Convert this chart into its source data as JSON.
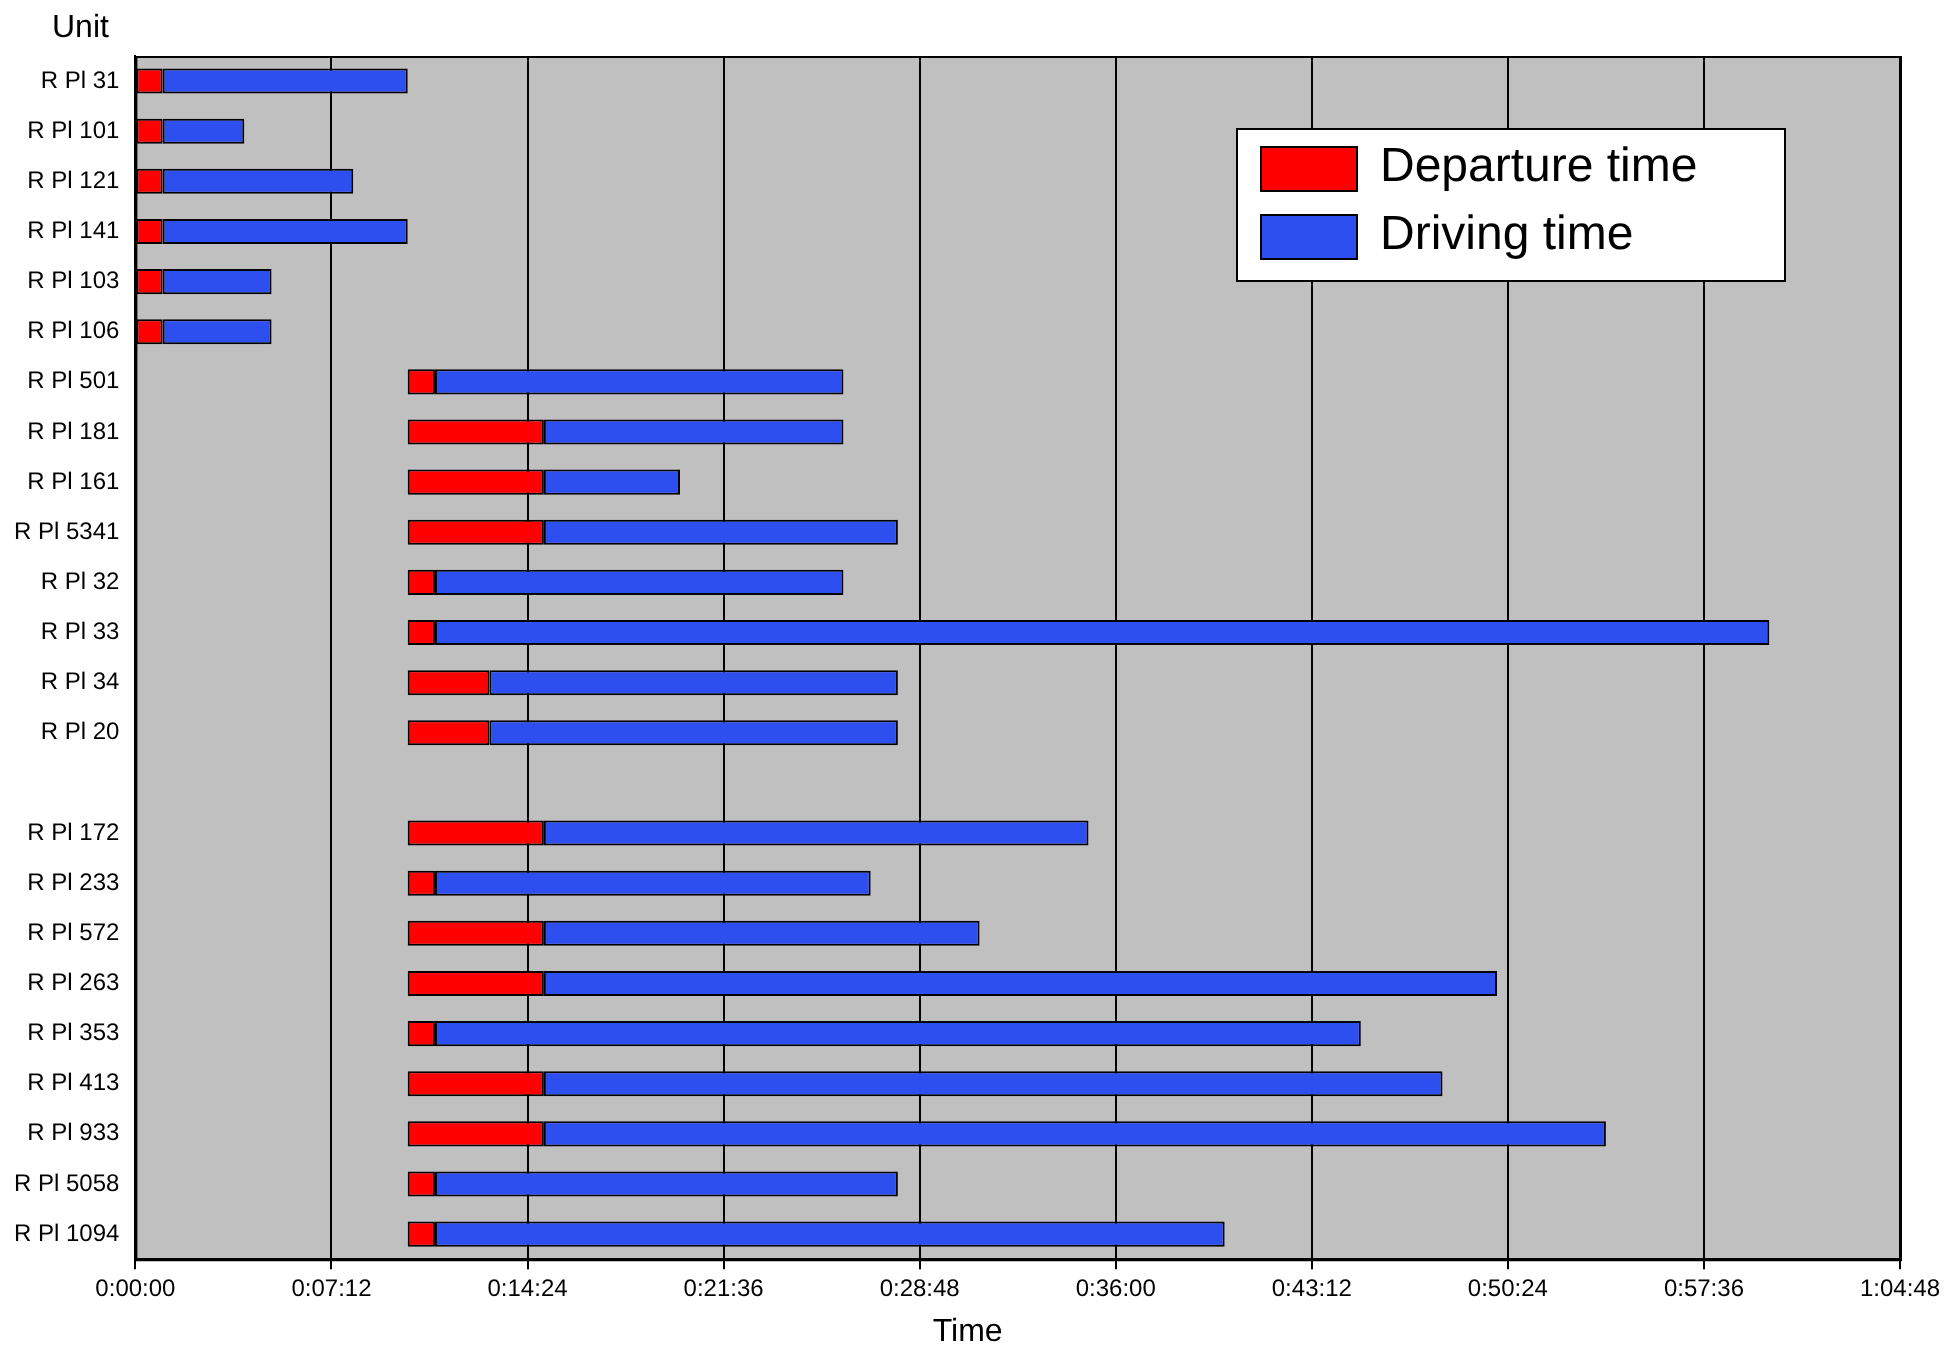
{
  "chart_data": {
    "type": "bar",
    "orientation": "horizontal",
    "xlabel": "Time",
    "ylabel": "Unit",
    "categories": [
      "R Pl 31",
      "R Pl 101",
      "R Pl 121",
      "R Pl 141",
      "R Pl 103",
      "R Pl 106",
      "R Pl 501",
      "R Pl 181",
      "R Pl 161",
      "R Pl 5341",
      "R Pl 32",
      "R Pl 33",
      "R Pl 34",
      "R Pl 20",
      null,
      "R Pl 172",
      "R Pl 233",
      "R Pl 572",
      "R Pl 263",
      "R Pl 353",
      "R Pl 413",
      "R Pl 933",
      "R Pl 5058",
      "R Pl 1094"
    ],
    "series": [
      {
        "name": "Departure time",
        "color": "#ff0000",
        "base": [
          0,
          0,
          0,
          0,
          0,
          0,
          10,
          10,
          10,
          10,
          10,
          10,
          10,
          10,
          null,
          10,
          10,
          10,
          10,
          10,
          10,
          10,
          10,
          10
        ],
        "values": [
          1,
          1,
          1,
          1,
          1,
          1,
          1,
          5,
          5,
          5,
          1,
          1,
          3,
          3,
          null,
          5,
          1,
          5,
          5,
          1,
          5,
          5,
          1,
          1
        ]
      },
      {
        "name": "Driving time",
        "color": "#2e4ff0",
        "base": [
          1,
          1,
          1,
          1,
          1,
          1,
          11,
          15,
          15,
          15,
          11,
          11,
          13,
          13,
          null,
          15,
          11,
          15,
          15,
          11,
          15,
          15,
          11,
          11
        ],
        "values": [
          9,
          3,
          7,
          9,
          4,
          4,
          15,
          11,
          5,
          13,
          15,
          49,
          15,
          15,
          null,
          20,
          16,
          16,
          35,
          34,
          33,
          39,
          17,
          29
        ]
      }
    ],
    "xlim": [
      0,
      64.8
    ],
    "xticks": [
      {
        "value": 0,
        "label": "0:00:00"
      },
      {
        "value": 7.2,
        "label": "0:07:12"
      },
      {
        "value": 14.4,
        "label": "0:14:24"
      },
      {
        "value": 21.6,
        "label": "0:21:36"
      },
      {
        "value": 28.8,
        "label": "0:28:48"
      },
      {
        "value": 36,
        "label": "0:36:00"
      },
      {
        "value": 43.2,
        "label": "0:43:12"
      },
      {
        "value": 50.4,
        "label": "0:50:24"
      },
      {
        "value": 57.6,
        "label": "0:57:36"
      },
      {
        "value": 64.8,
        "label": "1:04:48"
      }
    ],
    "grid": "x",
    "legend": "top right"
  }
}
